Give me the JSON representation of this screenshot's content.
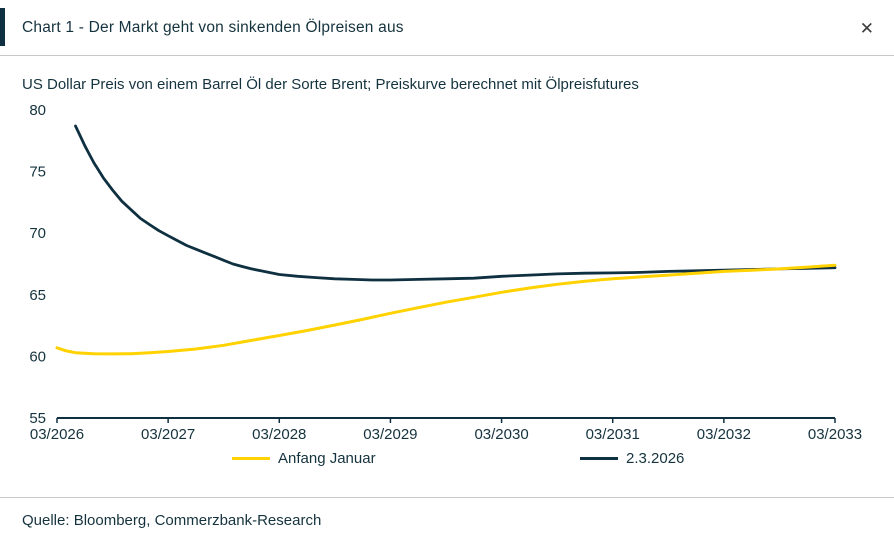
{
  "dialog": {
    "close_label": "✕"
  },
  "footer": {
    "source": "Quelle: Bloomberg, Commerzbank-Research"
  },
  "colors": {
    "brand_dark": "#0f3040",
    "brand_yellow": "#ffd200",
    "divider": "#c9c9c9"
  },
  "chart_data": {
    "type": "line",
    "title": "Chart 1 - Der Markt geht von sinkenden Ölpreisen aus",
    "subtitle": "US Dollar Preis von einem Barrel Öl der Sorte Brent; Preiskurve berechnet mit Ölpreisfutures",
    "xlabel": "",
    "ylabel": "",
    "xlim": [
      0,
      84
    ],
    "ylim": [
      55,
      80
    ],
    "yticks": [
      55,
      60,
      65,
      70,
      75,
      80
    ],
    "xticks": [
      0,
      12,
      24,
      36,
      48,
      60,
      72,
      84
    ],
    "x_tick_labels": [
      "03/2026",
      "03/2027",
      "03/2028",
      "03/2029",
      "03/2030",
      "03/2031",
      "03/2032",
      "03/2033"
    ],
    "grid": false,
    "legend_position": "bottom",
    "x_unit": "months since 03/2026",
    "series": [
      {
        "name": "Anfang Januar",
        "color": "#ffd200",
        "width": 3,
        "x": [
          0,
          1,
          2,
          3,
          4,
          6,
          8,
          10,
          12,
          15,
          18,
          21,
          24,
          27,
          30,
          33,
          36,
          39,
          42,
          45,
          48,
          51,
          54,
          57,
          60,
          63,
          66,
          69,
          72,
          75,
          78,
          81,
          84
        ],
        "values": [
          60.7,
          60.45,
          60.3,
          60.25,
          60.22,
          60.2,
          60.22,
          60.3,
          60.4,
          60.6,
          60.9,
          61.3,
          61.7,
          62.1,
          62.55,
          63.0,
          63.5,
          63.95,
          64.4,
          64.8,
          65.2,
          65.55,
          65.85,
          66.1,
          66.3,
          66.45,
          66.6,
          66.75,
          66.9,
          67.0,
          67.1,
          67.25,
          67.4
        ]
      },
      {
        "name": "2.3.2026",
        "color": "#0f3040",
        "width": 2.8,
        "x": [
          2,
          2.5,
          3,
          3.5,
          4,
          4.5,
          5,
          6,
          7,
          8,
          9,
          10,
          11,
          12,
          13,
          14,
          15,
          16,
          17,
          18,
          19,
          20,
          21,
          22,
          23,
          24,
          26,
          28,
          30,
          32,
          34,
          36,
          39,
          42,
          45,
          48,
          51,
          54,
          57,
          60,
          63,
          66,
          69,
          72,
          75,
          78,
          81,
          84
        ],
        "values": [
          78.7,
          77.9,
          77.1,
          76.4,
          75.7,
          75.1,
          74.5,
          73.5,
          72.6,
          71.9,
          71.2,
          70.7,
          70.2,
          69.8,
          69.4,
          69.0,
          68.7,
          68.4,
          68.1,
          67.8,
          67.5,
          67.3,
          67.1,
          66.95,
          66.8,
          66.65,
          66.5,
          66.4,
          66.3,
          66.25,
          66.2,
          66.2,
          66.25,
          66.3,
          66.35,
          66.5,
          66.6,
          66.7,
          66.75,
          66.78,
          66.82,
          66.9,
          66.95,
          67.0,
          67.05,
          67.1,
          67.15,
          67.2
        ]
      }
    ]
  }
}
